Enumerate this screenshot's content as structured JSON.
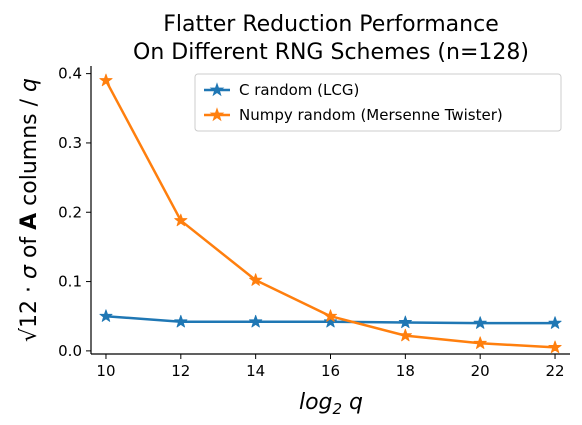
{
  "chart_data": {
    "type": "line",
    "title": [
      "Flatter Reduction Performance",
      "On Different RNG Schemes (n=128)"
    ],
    "xlabel": "log₂ q",
    "ylabel": "√12 · σ of A columns / q",
    "x": [
      10,
      12,
      14,
      16,
      18,
      20,
      22
    ],
    "xticks": [
      10,
      12,
      14,
      16,
      18,
      20,
      22
    ],
    "yticks": [
      0.0,
      0.1,
      0.2,
      0.3,
      0.4
    ],
    "ytick_labels": [
      "0.0",
      "0.1",
      "0.2",
      "0.3",
      "0.4"
    ],
    "xlim": [
      9.6,
      22.4
    ],
    "ylim": [
      -0.0045,
      0.411
    ],
    "grid": false,
    "legend_position": "top-right",
    "series": [
      {
        "name": "C random (LCG)",
        "color": "#1f77b4",
        "marker": "star",
        "values": [
          0.05,
          0.042,
          0.042,
          0.042,
          0.041,
          0.04,
          0.04
        ]
      },
      {
        "name": "Numpy random (Mersenne Twister)",
        "color": "#ff7f0e",
        "marker": "star",
        "values": [
          0.39,
          0.188,
          0.102,
          0.05,
          0.022,
          0.011,
          0.005
        ]
      }
    ]
  }
}
